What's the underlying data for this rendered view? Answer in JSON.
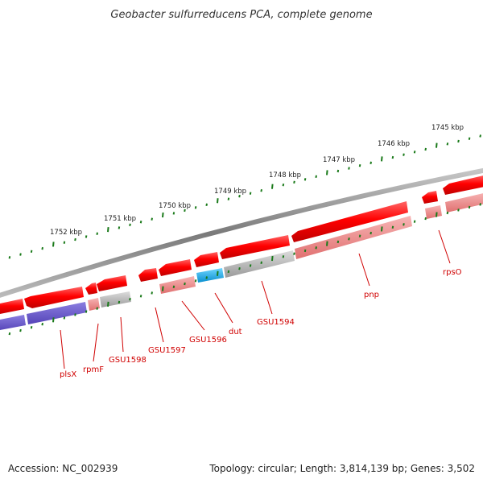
{
  "title": "Geobacter sulfurreducens PCA, complete genome",
  "footer": {
    "accession": "Accession: NC_002939",
    "summary": "Topology: circular; Length: 3,814,139 bp; Genes: 3,502"
  },
  "ruler": {
    "labels": [
      "1752 kbp",
      "1751 kbp",
      "1750 kbp",
      "1749 kbp",
      "1748 kbp",
      "1747 kbp",
      "1746 kbp",
      "1745 kbp"
    ]
  },
  "genes": [
    {
      "name": "plsX",
      "label": "plsX"
    },
    {
      "name": "rpmF",
      "label": "rpmF"
    },
    {
      "name": "GSU1598",
      "label": "GSU1598"
    },
    {
      "name": "GSU1597",
      "label": "GSU1597"
    },
    {
      "name": "GSU1596",
      "label": "GSU1596"
    },
    {
      "name": "dut",
      "label": "dut"
    },
    {
      "name": "GSU1594",
      "label": "GSU1594"
    },
    {
      "name": "pnp",
      "label": "pnp"
    },
    {
      "name": "rpsO",
      "label": "rpsO"
    }
  ],
  "colors": {
    "cds_strand": "#ff0000",
    "cds_light": "#f08080",
    "hypothetical": "#b0b0b0",
    "highlight": "#1aa7e0",
    "feature_purple": "#6a5acd",
    "tick_green": "#1a7a1a",
    "backbone": "#808080",
    "label_red": "#d00000"
  }
}
